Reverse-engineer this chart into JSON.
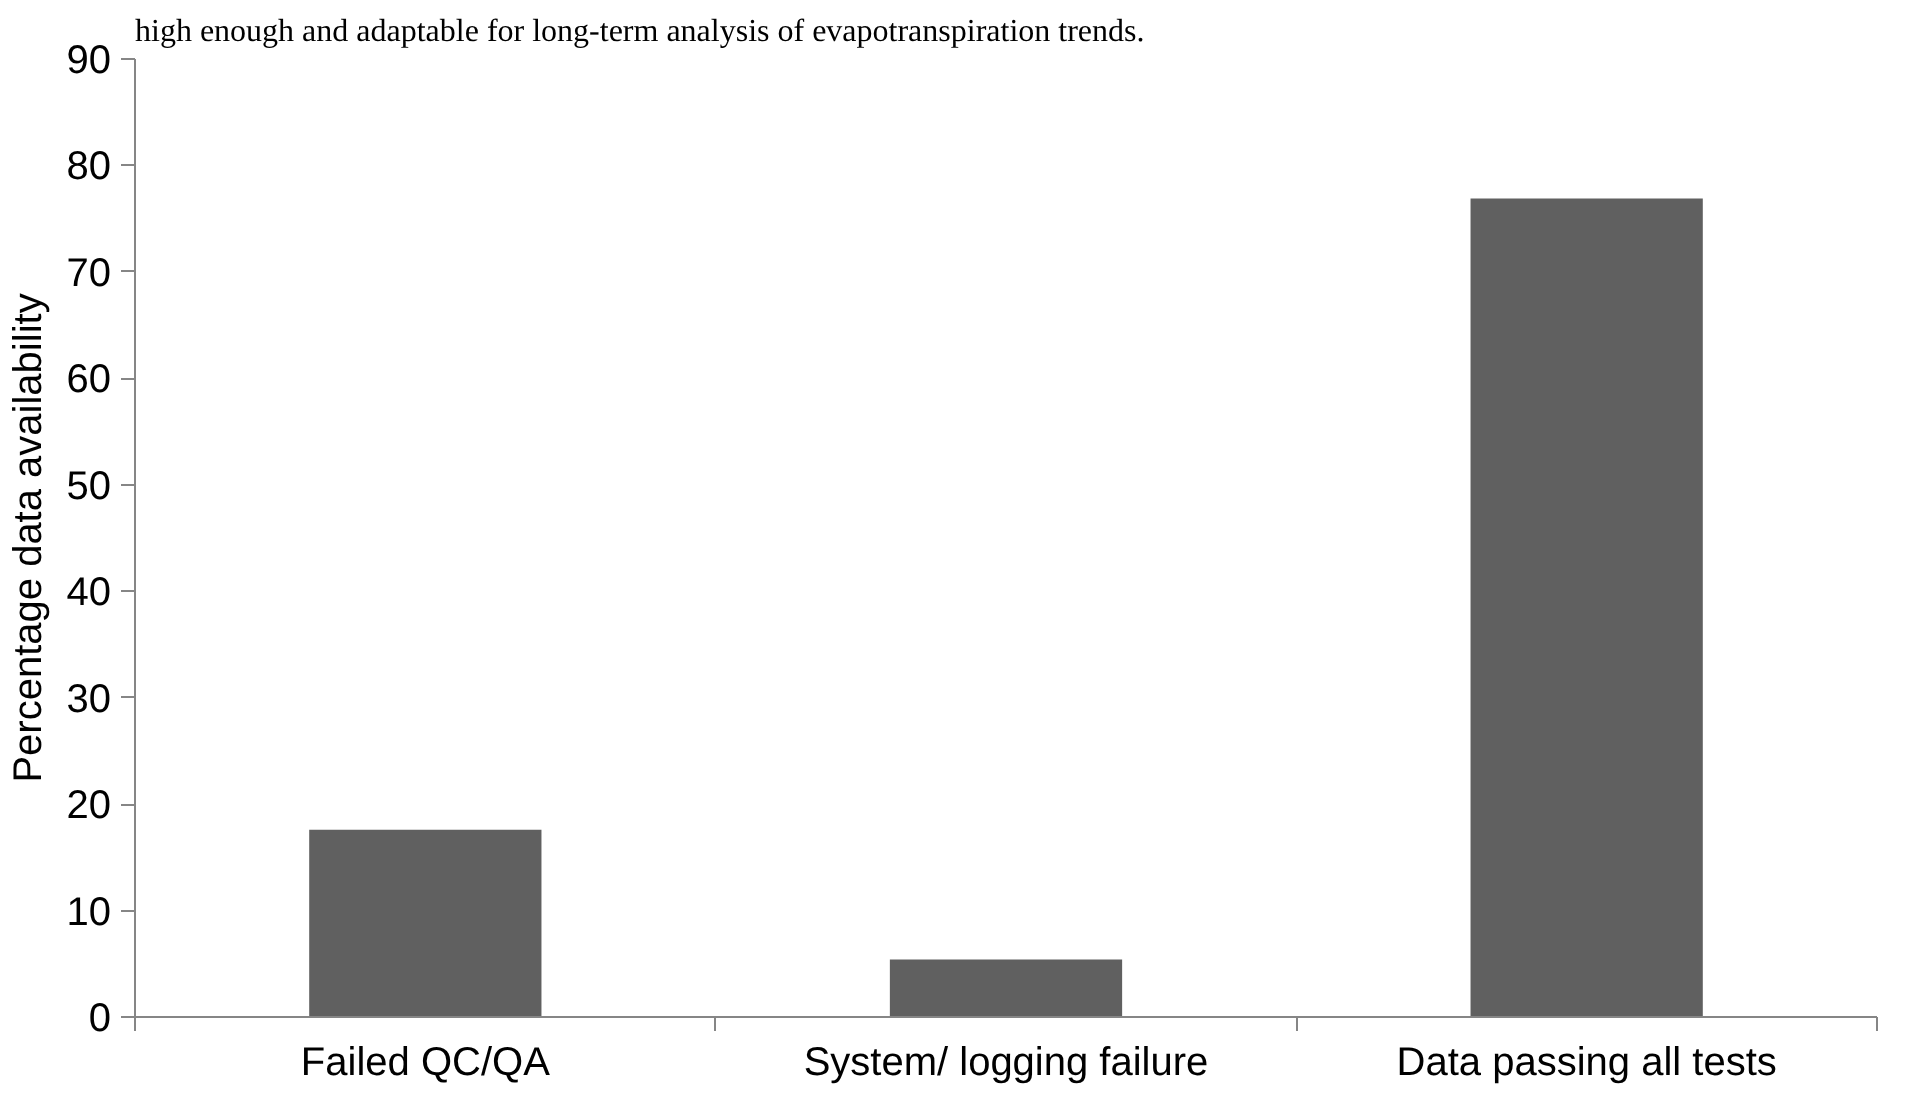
{
  "chart_data": {
    "type": "bar",
    "annotations": [
      "high enough and adaptable for long-term analysis of evapotranspiration trends."
    ],
    "ylabel": "Percentage data availability",
    "categories": [
      "Failed QC/QA",
      "System/ logging failure",
      "Data passing all tests"
    ],
    "values": [
      17.6,
      5.4,
      76.9
    ],
    "color": "#606060",
    "ylim": [
      0,
      90
    ],
    "yticks": [
      0,
      10,
      20,
      30,
      40,
      50,
      60,
      70,
      80,
      90
    ],
    "grid": false
  }
}
